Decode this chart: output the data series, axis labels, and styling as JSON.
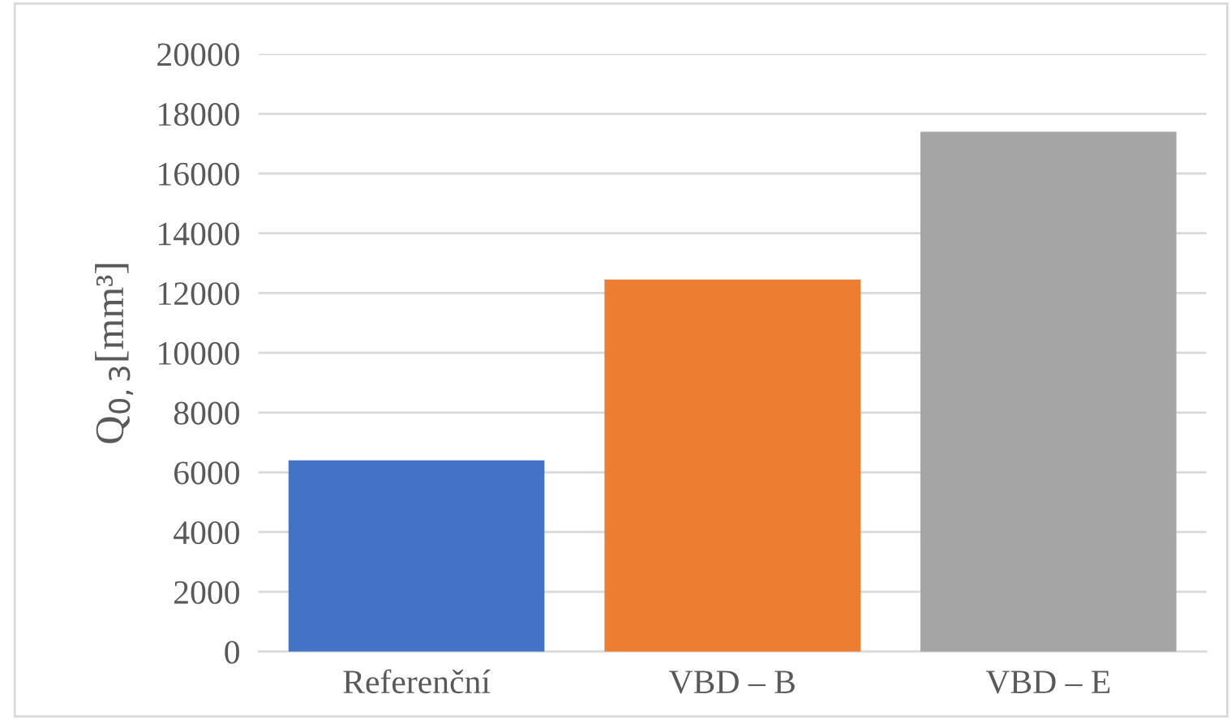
{
  "chart_data": {
    "type": "bar",
    "ylabel": "Q$_{0,3}$[mm³]",
    "categories": [
      "Referenční",
      "VBD – B",
      "VBD – E"
    ],
    "values": [
      6400,
      12450,
      17400
    ],
    "colors": [
      "#4472c4",
      "#ed7d31",
      "#a5a5a5"
    ],
    "ylim": [
      0,
      20000
    ],
    "yticks": [
      0,
      2000,
      4000,
      6000,
      8000,
      10000,
      12000,
      14000,
      16000,
      18000,
      20000
    ],
    "grid": "y"
  }
}
